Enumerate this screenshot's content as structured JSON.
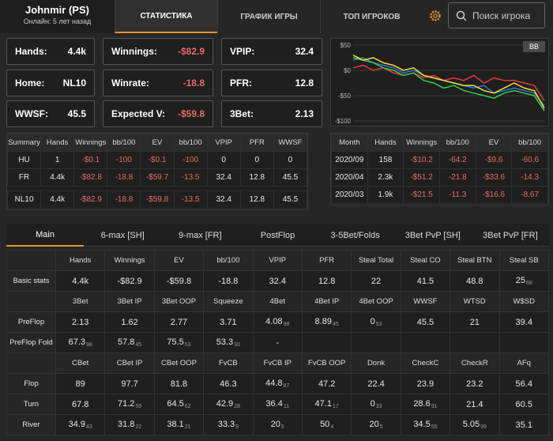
{
  "header": {
    "player": "Johnmir (PS)",
    "status": "Онлайн: 5 лет назад",
    "tabs": [
      "СТАТИСТИКА",
      "ГРАФИК ИГРЫ",
      "ТОП ИГРОКОВ"
    ],
    "search": "Поиск игрока"
  },
  "stat_boxes": [
    [
      {
        "label": "Hands:",
        "value": "4.4k"
      },
      {
        "label": "Winnings:",
        "value": "-$82.9"
      },
      {
        "label": "VPIP:",
        "value": "32.4"
      }
    ],
    [
      {
        "label": "Home:",
        "value": "NL10"
      },
      {
        "label": "Winrate:",
        "value": "-18.8"
      },
      {
        "label": "PFR:",
        "value": "12.8"
      }
    ],
    [
      {
        "label": "WWSF:",
        "value": "45.5"
      },
      {
        "label": "Expected V:",
        "value": "-$59.8"
      },
      {
        "label": "3Bet:",
        "value": "2.13"
      }
    ]
  ],
  "graph": {
    "type": "line",
    "unit_button": "BB",
    "ylim": [
      -100,
      50
    ],
    "yticks": [
      {
        "value": 50,
        "label": "$50"
      },
      {
        "value": 0,
        "label": "$0"
      },
      {
        "value": -50,
        "label": "-$50"
      },
      {
        "value": -100,
        "label": "-$100"
      }
    ],
    "series": [
      {
        "color": "#e33b3b",
        "values": [
          5,
          10,
          0,
          5,
          -5,
          -10,
          -5,
          -15,
          -10,
          -20,
          -15,
          -20,
          -10,
          -25,
          -15,
          -20,
          -20,
          -25,
          -30,
          -60
        ]
      },
      {
        "color": "#3f6fe0",
        "values": [
          20,
          25,
          15,
          10,
          5,
          -5,
          0,
          -10,
          -15,
          -20,
          -25,
          -30,
          -35,
          -30,
          -45,
          -40,
          -35,
          -40,
          -45,
          -70
        ]
      },
      {
        "color": "#2ecf4a",
        "values": [
          25,
          20,
          15,
          5,
          0,
          -10,
          -5,
          -20,
          -25,
          -35,
          -30,
          -40,
          -45,
          -50,
          -55,
          -45,
          -40,
          -45,
          -50,
          -80
        ]
      },
      {
        "color": "#f2e22e",
        "values": [
          30,
          20,
          25,
          15,
          10,
          0,
          5,
          -10,
          -15,
          -20,
          -25,
          -30,
          -30,
          -40,
          -45,
          -35,
          -25,
          -35,
          -40,
          -75
        ]
      }
    ]
  },
  "summary_table": {
    "headers": [
      "Summary",
      "Hands",
      "Winnings",
      "bb/100",
      "EV",
      "bb/100",
      "VPIP",
      "PFR",
      "WWSF"
    ],
    "rows": [
      [
        "HU",
        "1",
        "-$0.1",
        "-100",
        "-$0.1",
        "-100",
        "0",
        "0",
        "0"
      ],
      [
        "FR",
        "4.4k",
        "-$82.8",
        "-18.8",
        "-$59.7",
        "-13.5",
        "32.4",
        "12.8",
        "45.5"
      ],
      [
        "NL10",
        "4.4k",
        "-$82.9",
        "-18.8",
        "-$59.8",
        "-13.5",
        "32.4",
        "12.8",
        "45.5"
      ]
    ]
  },
  "month_table": {
    "headers": [
      "Month",
      "Hands",
      "Winnings",
      "bb/100",
      "EV",
      "bb/100"
    ],
    "rows": [
      [
        "2020/09",
        "158",
        "-$10.2",
        "-64.2",
        "-$9.6",
        "-60.6"
      ],
      [
        "2020/04",
        "2.3k",
        "-$51.2",
        "-21.8",
        "-$33.6",
        "-14.3"
      ],
      [
        "2020/03",
        "1.9k",
        "-$21.5",
        "-11.3",
        "-$16.6",
        "-8.67"
      ]
    ]
  },
  "stat_tabs": [
    "Main",
    "6-max [SH]",
    "9-max [FR]",
    "PostFlop",
    "3-5Bet/Folds",
    "3Bet PvP [SH]",
    "3Bet PvP [FR]"
  ],
  "stats_table": {
    "sections": [
      {
        "headers": [
          "Hands",
          "Winnings",
          "EV",
          "bb/100",
          "VPIP",
          "PFR",
          "Steal Total",
          "Steal CO",
          "Steal BTN",
          "Steal SB"
        ],
        "rows": [
          {
            "label": "Basic stats",
            "cells": [
              "4.4k",
              "-$82.9",
              "-$59.8",
              "-18.8",
              "32.4",
              "12.8",
              "22",
              "41.5",
              "48.8",
              {
                "value": "25",
                "sample": "68"
              }
            ]
          }
        ]
      },
      {
        "headers": [
          "3Bet",
          "3Bet IP",
          "3Bet OOP",
          "Squeeze",
          "4Bet",
          "4Bet IP",
          "4Bet OOP",
          "WWSF",
          "WTSD",
          "W$SD"
        ],
        "rows": [
          {
            "label": "PreFlop",
            "cells": [
              "2.13",
              "1.62",
              "2.77",
              "3.71",
              {
                "value": "4.08",
                "sample": "98"
              },
              {
                "value": "8.89",
                "sample": "45"
              },
              {
                "value": "0",
                "sample": "53"
              },
              "45.5",
              "21",
              "39.4"
            ]
          },
          {
            "label": "PreFlop Fold",
            "cells": [
              {
                "value": "67.3",
                "sample": "98"
              },
              {
                "value": "57.8",
                "sample": "45"
              },
              {
                "value": "75.5",
                "sample": "53"
              },
              {
                "value": "53.3",
                "sample": "30"
              },
              "-"
            ]
          }
        ]
      },
      {
        "headers": [
          "CBet",
          "CBet IP",
          "CBet OOP",
          "FvCB",
          "FvCB IP",
          "FvCB OOP",
          "Donk",
          "CheckC",
          "CheckR",
          "AFq"
        ],
        "rows": [
          {
            "label": "Flop",
            "cells": [
              "89",
              "97.7",
              "81.8",
              "46.3",
              {
                "value": "44.8",
                "sample": "87"
              },
              "47.2",
              "22.4",
              "23.9",
              "23.2",
              "56.4"
            ]
          },
          {
            "label": "Turn",
            "cells": [
              "67.8",
              {
                "value": "71.2",
                "sample": "59"
              },
              {
                "value": "64.5",
                "sample": "62"
              },
              {
                "value": "42.9",
                "sample": "28"
              },
              {
                "value": "36.4",
                "sample": "11"
              },
              {
                "value": "47.1",
                "sample": "17"
              },
              {
                "value": "0",
                "sample": "33"
              },
              {
                "value": "28.6",
                "sample": "91"
              },
              "21.4",
              "60.5"
            ]
          },
          {
            "label": "River",
            "cells": [
              {
                "value": "34.9",
                "sample": "43"
              },
              {
                "value": "31.8",
                "sample": "22"
              },
              {
                "value": "38.1",
                "sample": "21"
              },
              {
                "value": "33.3",
                "sample": "9"
              },
              {
                "value": "20",
                "sample": "5"
              },
              {
                "value": "50",
                "sample": "4"
              },
              {
                "value": "20",
                "sample": "5"
              },
              {
                "value": "34.5",
                "sample": "55"
              },
              {
                "value": "5.05",
                "sample": "99"
              },
              "35.1"
            ]
          }
        ]
      }
    ]
  }
}
